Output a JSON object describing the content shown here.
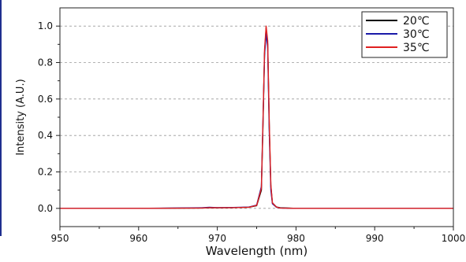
{
  "chart_data": {
    "type": "line",
    "xlabel": "Wavelength (nm)",
    "ylabel": "Intensity (A.U.)",
    "xlim": [
      950,
      1000
    ],
    "ylim": [
      -0.1,
      1.1
    ],
    "xticks": [
      950,
      960,
      970,
      980,
      990,
      1000
    ],
    "yticks": [
      0.0,
      0.2,
      0.4,
      0.6,
      0.8,
      1.0
    ],
    "ytick_labels": [
      "0.0",
      "0.2",
      "0.4",
      "0.6",
      "0.8",
      "1.0"
    ],
    "grid": "horizontal dashed",
    "legend_position": "top-right",
    "x": [
      950,
      960,
      968,
      969,
      970,
      972,
      974,
      975,
      975.6,
      975.8,
      976.0,
      976.2,
      976.4,
      976.6,
      976.8,
      977.0,
      977.5,
      978,
      980,
      990,
      1000
    ],
    "series": [
      {
        "name": "20℃",
        "color": "#000000",
        "values": [
          0,
          0,
          0.002,
          0.004,
          0.003,
          0.004,
          0.006,
          0.015,
          0.1,
          0.45,
          0.85,
          0.99,
          0.9,
          0.45,
          0.12,
          0.03,
          0.008,
          0.003,
          0,
          0,
          0
        ]
      },
      {
        "name": "30℃",
        "color": "#1a1aa8",
        "values": [
          0,
          0,
          0.003,
          0.006,
          0.004,
          0.005,
          0.007,
          0.018,
          0.12,
          0.48,
          0.84,
          0.96,
          0.88,
          0.42,
          0.1,
          0.025,
          0.006,
          0.002,
          0,
          0,
          0
        ]
      },
      {
        "name": "35℃",
        "color": "#e02020",
        "values": [
          0,
          0,
          0.002,
          0.004,
          0.003,
          0.004,
          0.006,
          0.016,
          0.11,
          0.47,
          0.87,
          1.0,
          0.92,
          0.47,
          0.13,
          0.03,
          0.007,
          0.002,
          0,
          0,
          0
        ]
      }
    ]
  }
}
